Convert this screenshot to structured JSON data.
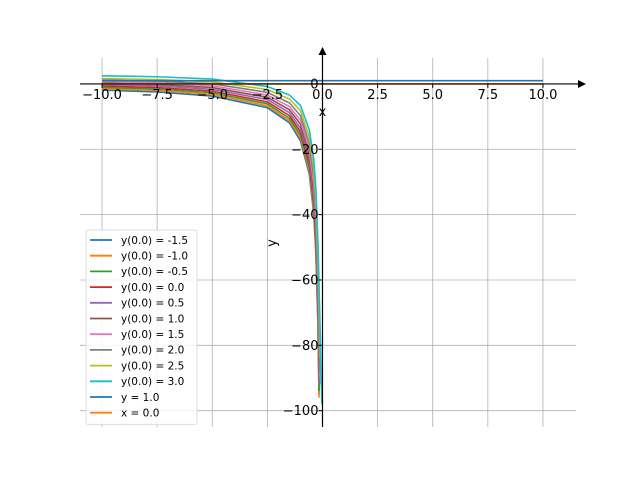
{
  "chart_data": {
    "type": "line",
    "xlabel": "x",
    "ylabel": "y",
    "xlim": [
      -11.0,
      11.5
    ],
    "ylim": [
      -105,
      11
    ],
    "grid": true,
    "legend_position": "lower-left",
    "x_ticks": [
      -10.0,
      -7.5,
      -5.0,
      -2.5,
      0.0,
      2.5,
      5.0,
      7.5,
      10.0
    ],
    "x_tick_labels": [
      "−10.0",
      "−7.5",
      "−5.0",
      "−2.5",
      "0.0",
      "2.5",
      "5.0",
      "7.5",
      "10.0"
    ],
    "y_ticks": [
      0,
      -20,
      -40,
      -60,
      -80,
      -100
    ],
    "y_tick_labels": [
      "0",
      "−20",
      "−40",
      "−60",
      "−80",
      "−100"
    ],
    "series": [
      {
        "name": "y(0.0) = -1.5",
        "color": "#1f77b4",
        "values": [
          [
            -10.0,
            -1.86
          ],
          [
            -7.5,
            -2.46
          ],
          [
            -5.0,
            -3.7
          ],
          [
            -2.5,
            -7.27
          ],
          [
            -1.5,
            -11.9
          ],
          [
            -1.0,
            -17.4
          ],
          [
            -0.6,
            -27.5
          ],
          [
            -0.4,
            -39.6
          ],
          [
            -0.3,
            -52.0
          ],
          [
            -0.21,
            -73.0
          ],
          [
            -0.16,
            -95.0
          ]
        ]
      },
      {
        "name": "y(0.0) = -1.0",
        "color": "#ff7f0e",
        "values": [
          [
            -10.0,
            -1.45
          ],
          [
            -7.5,
            -2.0
          ],
          [
            -5.0,
            -3.2
          ],
          [
            -2.5,
            -6.7
          ],
          [
            -1.5,
            -11.2
          ],
          [
            -1.0,
            -16.5
          ],
          [
            -0.6,
            -26.5
          ],
          [
            -0.4,
            -38.5
          ],
          [
            -0.3,
            -50.5
          ],
          [
            -0.2,
            -74.0
          ],
          [
            -0.15,
            -96.0
          ]
        ]
      },
      {
        "name": "y(0.0) = -0.5",
        "color": "#2ca02c",
        "values": [
          [
            -10.0,
            -1.05
          ],
          [
            -7.5,
            -1.55
          ],
          [
            -5.0,
            -2.7
          ],
          [
            -2.5,
            -6.1
          ],
          [
            -1.5,
            -10.5
          ],
          [
            -1.0,
            -15.6
          ],
          [
            -0.6,
            -25.4
          ],
          [
            -0.4,
            -37.2
          ],
          [
            -0.3,
            -49.0
          ],
          [
            -0.2,
            -72.0
          ],
          [
            -0.15,
            -94.0
          ]
        ]
      },
      {
        "name": "y(0.0) = 0.0",
        "color": "#d62728",
        "values": [
          [
            -10.0,
            -0.6
          ],
          [
            -7.5,
            -1.1
          ],
          [
            -5.0,
            -2.2
          ],
          [
            -2.5,
            -5.5
          ],
          [
            -1.5,
            -9.7
          ],
          [
            -1.0,
            -14.6
          ],
          [
            -0.6,
            -24.3
          ],
          [
            -0.4,
            -35.8
          ],
          [
            -0.3,
            -47.3
          ],
          [
            -0.2,
            -70.0
          ],
          [
            -0.14,
            -90.0
          ]
        ]
      },
      {
        "name": "y(0.0) = 0.5",
        "color": "#9467bd",
        "values": [
          [
            -10.0,
            -0.15
          ],
          [
            -7.5,
            -0.62
          ],
          [
            -5.0,
            -1.65
          ],
          [
            -2.5,
            -4.8
          ],
          [
            -1.5,
            -8.8
          ],
          [
            -1.0,
            -13.5
          ],
          [
            -0.6,
            -23.0
          ],
          [
            -0.4,
            -34.2
          ],
          [
            -0.3,
            -45.5
          ],
          [
            -0.2,
            -67.5
          ],
          [
            -0.13,
            -92.0
          ]
        ]
      },
      {
        "name": "y(0.0) = 1.0",
        "color": "#8c564b",
        "values": [
          [
            -10.0,
            0.3
          ],
          [
            -7.5,
            -0.15
          ],
          [
            -5.0,
            -1.1
          ],
          [
            -2.5,
            -4.1
          ],
          [
            -1.5,
            -7.9
          ],
          [
            -1.0,
            -12.3
          ],
          [
            -0.6,
            -21.6
          ],
          [
            -0.4,
            -32.5
          ],
          [
            -0.3,
            -43.5
          ],
          [
            -0.2,
            -65.0
          ],
          [
            -0.12,
            -90.0
          ]
        ]
      },
      {
        "name": "y(0.0) = 1.5",
        "color": "#e377c2",
        "values": [
          [
            -10.0,
            0.75
          ],
          [
            -7.5,
            0.35
          ],
          [
            -5.0,
            -0.55
          ],
          [
            -2.5,
            -3.4
          ],
          [
            -1.5,
            -6.9
          ],
          [
            -1.0,
            -11.1
          ],
          [
            -0.6,
            -20.0
          ],
          [
            -0.4,
            -30.5
          ],
          [
            -0.3,
            -41.2
          ],
          [
            -0.2,
            -62.0
          ],
          [
            -0.11,
            -90.0
          ]
        ]
      },
      {
        "name": "y(0.0) = 2.0",
        "color": "#7f7f7f",
        "values": [
          [
            -10.0,
            1.2
          ],
          [
            -7.5,
            0.85
          ],
          [
            -5.0,
            0.05
          ],
          [
            -2.5,
            -2.6
          ],
          [
            -1.5,
            -5.8
          ],
          [
            -1.0,
            -9.7
          ],
          [
            -0.6,
            -18.2
          ],
          [
            -0.4,
            -28.3
          ],
          [
            -0.3,
            -38.6
          ],
          [
            -0.2,
            -58.5
          ],
          [
            -0.1,
            -88.0
          ]
        ]
      },
      {
        "name": "y(0.0) = 2.5",
        "color": "#bcbd22",
        "values": [
          [
            -10.0,
            1.65
          ],
          [
            -7.5,
            1.35
          ],
          [
            -5.0,
            0.65
          ],
          [
            -2.5,
            -1.7
          ],
          [
            -1.5,
            -4.6
          ],
          [
            -1.0,
            -8.2
          ],
          [
            -0.6,
            -16.2
          ],
          [
            -0.4,
            -25.8
          ],
          [
            -0.3,
            -35.6
          ],
          [
            -0.2,
            -54.5
          ],
          [
            -0.1,
            -84.0
          ]
        ]
      },
      {
        "name": "y(0.0) = 3.0",
        "color": "#17becf",
        "values": [
          [
            -10.0,
            2.5
          ],
          [
            -7.5,
            2.2
          ],
          [
            -5.0,
            1.5
          ],
          [
            -2.5,
            -0.8
          ],
          [
            -1.5,
            -3.4
          ],
          [
            -1.0,
            -6.6
          ],
          [
            -0.6,
            -14.0
          ],
          [
            -0.4,
            -22.8
          ],
          [
            -0.3,
            -31.8
          ],
          [
            -0.2,
            -49.5
          ],
          [
            -0.09,
            -80.0
          ],
          [
            -0.03,
            -98.0
          ]
        ]
      },
      {
        "name": "y = 1.0",
        "color": "#1f77b4",
        "values": [
          [
            -10.0,
            1.0
          ],
          [
            10.0,
            1.0
          ]
        ]
      },
      {
        "name": "x = 0.0",
        "color": "#ff7f0e",
        "values": [
          [
            -10.0,
            0.0
          ],
          [
            10.0,
            0.0
          ]
        ]
      }
    ]
  }
}
